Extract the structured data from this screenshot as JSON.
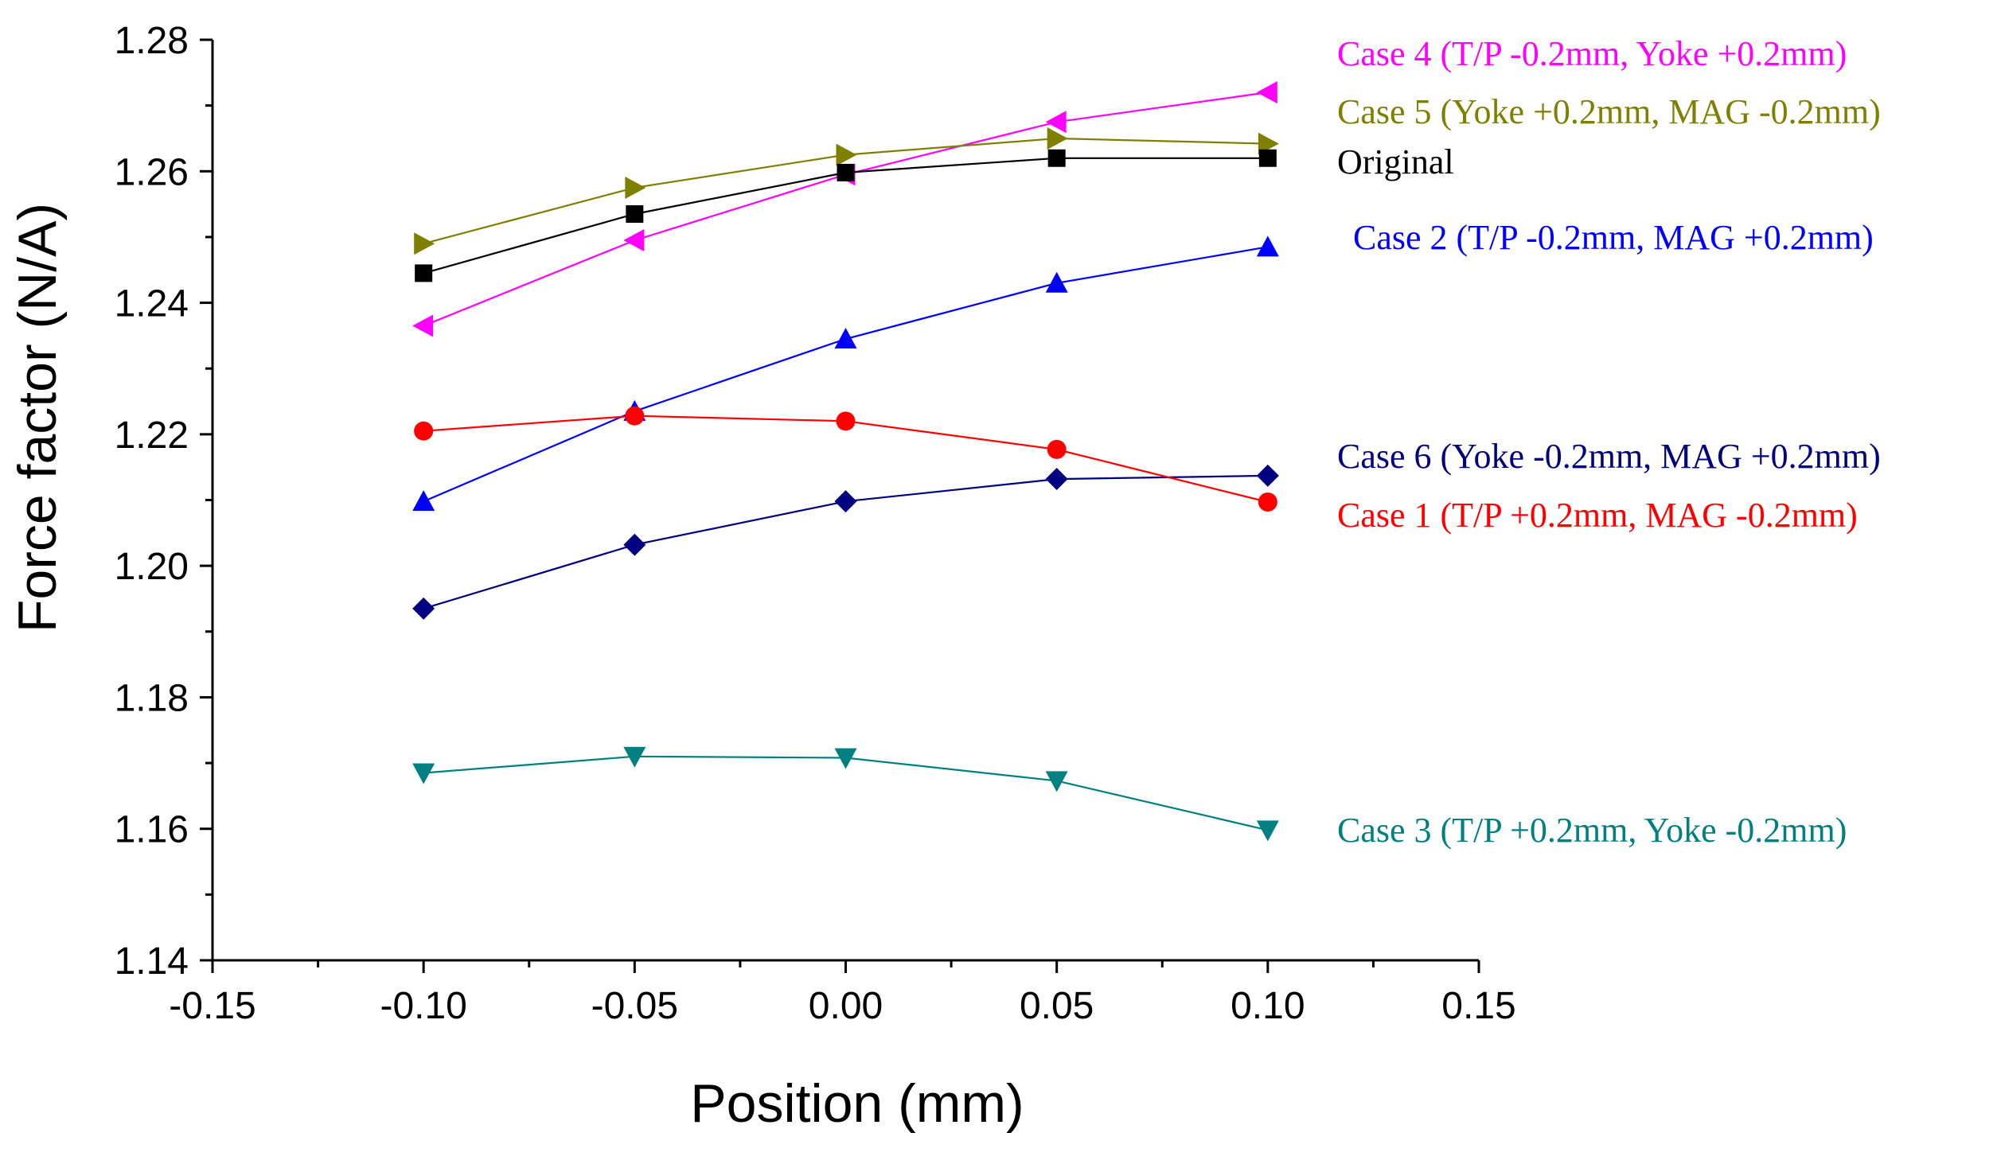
{
  "chart_data": {
    "type": "line",
    "title": "",
    "xlabel": "Position (mm)",
    "ylabel": "Force factor (N/A)",
    "xlim": [
      -0.15,
      0.15
    ],
    "ylim": [
      1.14,
      1.28
    ],
    "xticks": [
      -0.15,
      -0.1,
      -0.05,
      0.0,
      0.05,
      0.1,
      0.15
    ],
    "xtick_labels": [
      "-0.15",
      "-0.10",
      "-0.05",
      "0.00",
      "0.05",
      "0.10",
      "0.15"
    ],
    "yticks": [
      1.14,
      1.16,
      1.18,
      1.2,
      1.22,
      1.24,
      1.26,
      1.28
    ],
    "ytick_labels": [
      "1.14",
      "1.16",
      "1.18",
      "1.20",
      "1.22",
      "1.24",
      "1.26",
      "1.28"
    ],
    "x": [
      -0.1,
      -0.05,
      0.0,
      0.05,
      0.1
    ],
    "grid": false,
    "legend": "right",
    "series": [
      {
        "name": "Case 4 (T/P -0.2mm, Yoke +0.2mm)",
        "key": "case4",
        "color": "#ff00ff",
        "marker": "triangle-left",
        "values": [
          1.2365,
          1.2495,
          1.2595,
          1.2675,
          1.272
        ]
      },
      {
        "name": "Case 5 (Yoke +0.2mm, MAG -0.2mm)",
        "key": "case5",
        "color": "#808000",
        "marker": "triangle-right",
        "values": [
          1.249,
          1.2575,
          1.2625,
          1.265,
          1.2642
        ]
      },
      {
        "name": "Original",
        "key": "original",
        "color": "#000000",
        "marker": "square",
        "values": [
          1.2445,
          1.2535,
          1.2598,
          1.262,
          1.262
        ]
      },
      {
        "name": "Case 2 (T/P -0.2mm, MAG +0.2mm)",
        "key": "case2",
        "color": "#0000ff",
        "marker": "triangle-up",
        "values": [
          1.2098,
          1.2235,
          1.2345,
          1.243,
          1.2485
        ]
      },
      {
        "name": "Case 6 (Yoke -0.2mm, MAG +0.2mm)",
        "key": "case6",
        "color": "#000080",
        "marker": "diamond",
        "values": [
          1.1935,
          1.2032,
          1.2098,
          1.2132,
          1.2137
        ]
      },
      {
        "name": "Case 1 (T/P +0.2mm, MAG -0.2mm)",
        "key": "case1",
        "color": "#ff0000",
        "marker": "circle",
        "values": [
          1.2205,
          1.2228,
          1.222,
          1.2177,
          1.2097
        ]
      },
      {
        "name": "Case 3 (T/P +0.2mm, Yoke -0.2mm)",
        "key": "case3",
        "color": "#008080",
        "marker": "triangle-down",
        "values": [
          1.1685,
          1.171,
          1.1708,
          1.1673,
          1.1598
        ]
      }
    ]
  }
}
